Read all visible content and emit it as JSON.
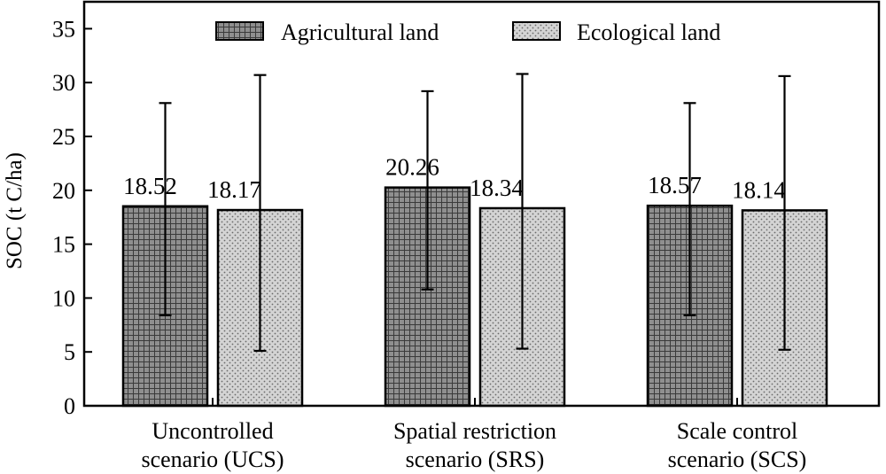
{
  "chart_data": {
    "type": "bar",
    "categories": [
      [
        "Uncontrolled",
        "scenario (UCS)"
      ],
      [
        "Spatial restriction",
        "scenario (SRS)"
      ],
      [
        "Scale control",
        "scenario (SCS)"
      ]
    ],
    "series": [
      {
        "name": "Agricultural land",
        "values": [
          18.52,
          20.26,
          18.57
        ],
        "error_low": [
          8.4,
          10.8,
          8.4
        ],
        "error_high": [
          28.1,
          29.2,
          28.1
        ],
        "pattern": "grid",
        "color": "#8c8c8c"
      },
      {
        "name": "Ecological land",
        "values": [
          18.17,
          18.34,
          18.14
        ],
        "error_low": [
          5.1,
          5.3,
          5.2
        ],
        "error_high": [
          30.7,
          30.8,
          30.6
        ],
        "pattern": "dots",
        "color": "#d6d6d6"
      }
    ],
    "data_labels": [
      [
        "18.52",
        "18.17"
      ],
      [
        "20.26",
        "18.34"
      ],
      [
        "18.57",
        "18.14"
      ]
    ],
    "ylabel": "SOC (t C/ha)",
    "xlabel": "",
    "ylim": [
      0,
      37.5
    ],
    "yticks": [
      0,
      5,
      10,
      15,
      20,
      25,
      30,
      35
    ],
    "grid": false,
    "legend": "top-center"
  }
}
